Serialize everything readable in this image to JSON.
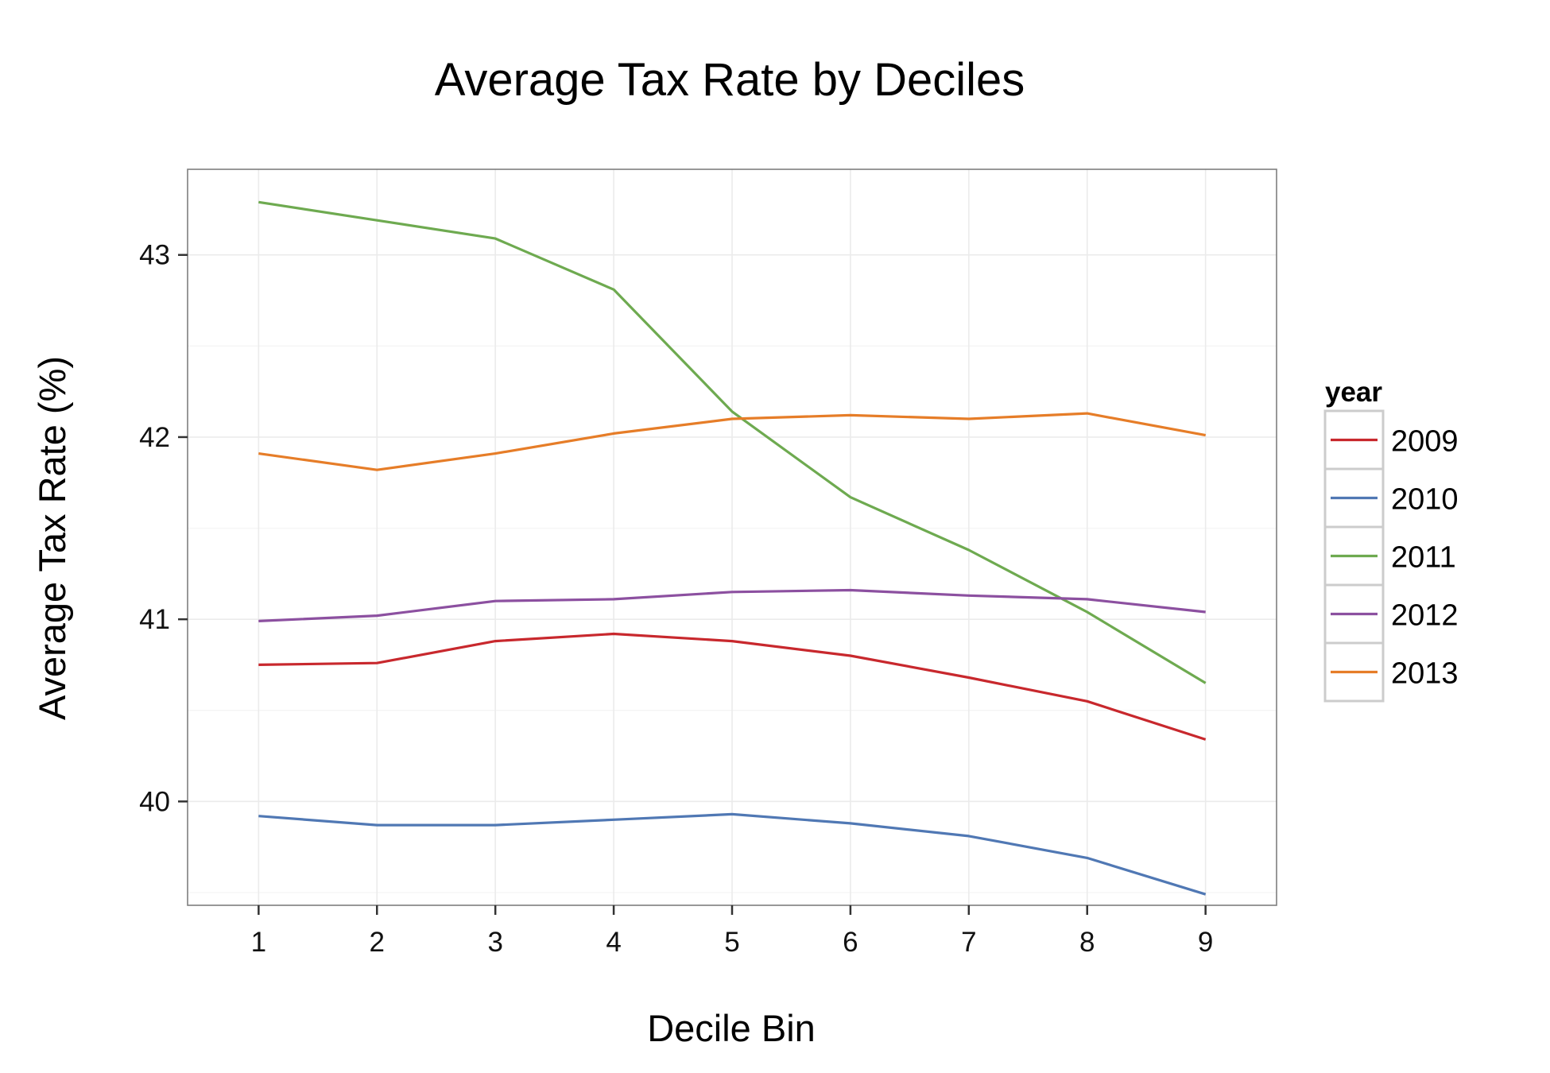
{
  "chart_data": {
    "type": "line",
    "title": "Average Tax Rate by Deciles",
    "xlabel": "Decile Bin",
    "ylabel": "Average Tax Rate (%)",
    "x": [
      1,
      2,
      3,
      4,
      5,
      6,
      7,
      8,
      9
    ],
    "xlim": [
      0.4,
      9.6
    ],
    "ylim": [
      39.43,
      43.47
    ],
    "xticks": [
      "1",
      "2",
      "3",
      "4",
      "5",
      "6",
      "7",
      "8",
      "9"
    ],
    "yticks": [
      "40",
      "41",
      "42",
      "43"
    ],
    "grid": true,
    "legend_position": "right",
    "legend_title": "year",
    "series": [
      {
        "name": "2009",
        "color": "#c8282d",
        "values": [
          40.75,
          40.76,
          40.88,
          40.92,
          40.88,
          40.8,
          40.68,
          40.55,
          40.34
        ]
      },
      {
        "name": "2010",
        "color": "#5078b4",
        "values": [
          39.92,
          39.87,
          39.87,
          39.9,
          39.93,
          39.88,
          39.81,
          39.69,
          39.49
        ]
      },
      {
        "name": "2011",
        "color": "#6eaa50",
        "values": [
          43.29,
          43.19,
          43.09,
          42.81,
          42.14,
          41.67,
          41.38,
          41.04,
          40.65
        ]
      },
      {
        "name": "2012",
        "color": "#8c50a0",
        "values": [
          40.99,
          41.02,
          41.1,
          41.11,
          41.15,
          41.16,
          41.13,
          41.11,
          41.04
        ]
      },
      {
        "name": "2013",
        "color": "#e67d28",
        "values": [
          41.91,
          41.82,
          41.91,
          42.02,
          42.1,
          42.12,
          42.1,
          42.13,
          42.01
        ]
      }
    ]
  }
}
